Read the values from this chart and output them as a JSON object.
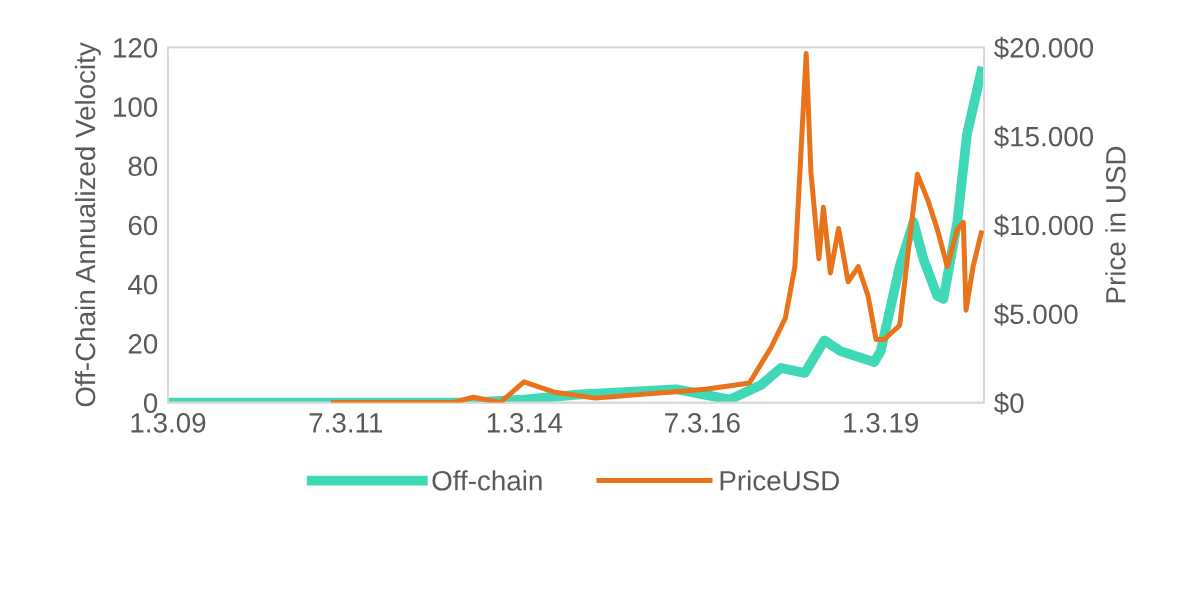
{
  "chart_data": {
    "type": "line",
    "xlabel": null,
    "ylabel": "Off-Chain Annualized Velocity",
    "y2label": "Price in USD",
    "xlim": [
      "2009-01-03",
      "2020-06-15"
    ],
    "xticks": [
      {
        "value": "2009-01-03",
        "label": "1.3.09"
      },
      {
        "value": "2011-07-03",
        "label": "7.3.11"
      },
      {
        "value": "2014-01-03",
        "label": "1.3.14"
      },
      {
        "value": "2016-07-03",
        "label": "7.3.16"
      },
      {
        "value": "2019-01-03",
        "label": "1.3.19"
      }
    ],
    "ylim": [
      0,
      120
    ],
    "yticks": [
      0,
      20,
      40,
      60,
      80,
      100,
      120
    ],
    "y2lim": [
      0,
      20000
    ],
    "y2ticks": [
      {
        "value": 0,
        "label": "$0"
      },
      {
        "value": 5000,
        "label": "$5.000"
      },
      {
        "value": 10000,
        "label": "$10.000"
      },
      {
        "value": 15000,
        "label": "$15.000"
      },
      {
        "value": 20000,
        "label": "$20.000"
      }
    ],
    "grid": false,
    "legend": "bottom",
    "marker": "none",
    "line_style": "solid",
    "series": [
      {
        "name": "Off-chain",
        "color": "#3fd9b8",
        "x": [
          "2009-01-03",
          "2011-05-01",
          "2013-04-01",
          "2014-01-01",
          "2014-10-01",
          "2016-02-20",
          "2016-11-20",
          "2017-05-01",
          "2017-08-10",
          "2017-12-10",
          "2018-03-20",
          "2018-06-10",
          "2018-12-01",
          "2019-01-03",
          "2019-04-10",
          "2019-06-20",
          "2019-08-10",
          "2019-10-20",
          "2019-11-20",
          "2020-01-30",
          "2020-03-20",
          "2020-06-01"
        ],
        "values": [
          0,
          0,
          0,
          1,
          2.7,
          4.5,
          1,
          6,
          11.7,
          10,
          21,
          17.4,
          13.7,
          17.4,
          46,
          61,
          48.4,
          36,
          35,
          61,
          90.7,
          111.8
        ]
      },
      {
        "name": "PriceUSD",
        "color": "#e8731a",
        "axis": "y2",
        "x": [
          "2011-05-01",
          "2013-01-01",
          "2013-04-15",
          "2013-09-01",
          "2014-01-01",
          "2014-06-01",
          "2015-01-01",
          "2016-07-20",
          "2017-03-01",
          "2017-06-20",
          "2017-09-01",
          "2017-10-20",
          "2017-12-17",
          "2018-01-10",
          "2018-02-20",
          "2018-03-15",
          "2018-04-20",
          "2018-06-01",
          "2018-07-20",
          "2018-09-10",
          "2018-10-30",
          "2018-12-10",
          "2019-01-20",
          "2019-04-10",
          "2019-06-01",
          "2019-07-10",
          "2019-09-01",
          "2019-10-20",
          "2019-12-10",
          "2020-01-30",
          "2020-03-01",
          "2020-03-15",
          "2020-04-20",
          "2020-06-01"
        ],
        "values": [
          0,
          0,
          300,
          0,
          1170,
          600,
          250,
          750,
          1100,
          3100,
          4750,
          7650,
          19650,
          13000,
          8100,
          11000,
          7300,
          9800,
          6800,
          7650,
          6000,
          3550,
          3550,
          4350,
          9300,
          12850,
          11400,
          9750,
          7650,
          9750,
          10150,
          5200,
          7650,
          9550
        ]
      }
    ]
  }
}
